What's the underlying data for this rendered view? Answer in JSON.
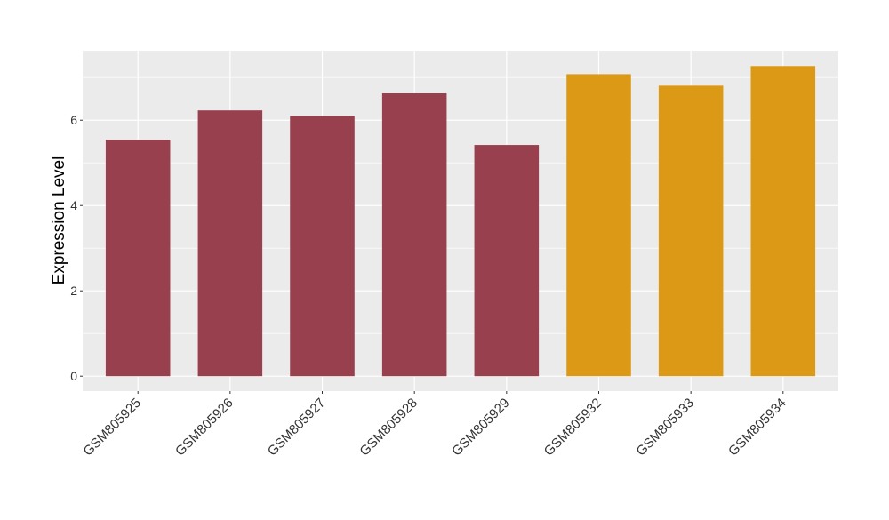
{
  "chart_data": {
    "type": "bar",
    "y_label": "Expression Level",
    "categories": [
      "GSM805925",
      "GSM805926",
      "GSM805927",
      "GSM805928",
      "GSM805929",
      "GSM805932",
      "GSM805933",
      "GSM805934"
    ],
    "values": [
      5.54,
      6.23,
      6.1,
      6.63,
      5.42,
      7.08,
      6.81,
      7.27
    ],
    "colors": [
      "#99404e",
      "#99404e",
      "#99404e",
      "#99404e",
      "#99404e",
      "#dc9915",
      "#dc9915",
      "#dc9915"
    ],
    "ylim": [
      -0.35,
      7.63
    ],
    "yticks": [
      0,
      2,
      4,
      6
    ],
    "y_minor_ticks": [
      1,
      3,
      5,
      7
    ],
    "grid": true
  }
}
